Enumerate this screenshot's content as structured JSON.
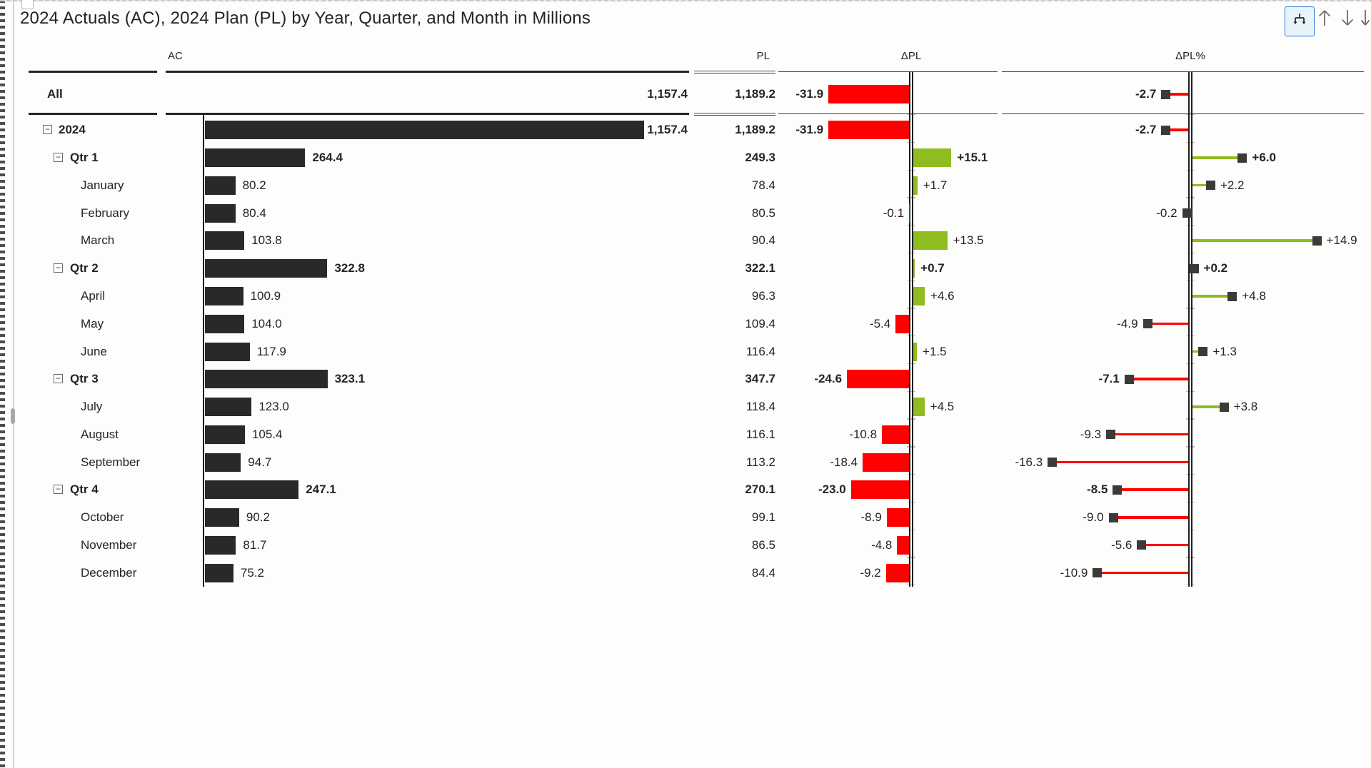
{
  "title": "2024 Actuals (AC), 2024 Plan (PL) by Year, Quarter, and Month in Millions",
  "toolbar": {
    "drill_mode_icon": "drill-down-mode",
    "drill_up_icon": "drill-up-arrow",
    "drill_down_icon": "drill-down-arrow",
    "expand_next_icon": "expand-all-down-double-arrow"
  },
  "columns": {
    "ac": "AC",
    "pl": "PL",
    "dpl": "ΔPL",
    "dplp": "ΔPL%"
  },
  "colors": {
    "bar": "#2a2928",
    "positive": "#8fbc1e",
    "negative": "#ff0000",
    "marker": "#3b3a39",
    "text": "#252423",
    "accent_button_bg": "#e8f3fc",
    "accent_button_border": "#2b7bd4"
  },
  "chart_data": {
    "type": "table",
    "unit": "Millions",
    "value_columns": [
      "AC",
      "PL",
      "ΔPL",
      "ΔPL%"
    ],
    "rows": [
      {
        "label": "All",
        "level": "all",
        "bold": true,
        "expandable": false,
        "ac": 1157.4,
        "ac_text": "1,157.4",
        "pl": 1189.2,
        "pl_text": "1,189.2",
        "dpl": -31.9,
        "dpl_text": "-31.9",
        "dplp": -2.7,
        "dplp_text": "-2.7"
      },
      {
        "label": "2024",
        "level": "year",
        "bold": true,
        "expandable": true,
        "ac": 1157.4,
        "ac_text": "1,157.4",
        "pl": 1189.2,
        "pl_text": "1,189.2",
        "dpl": -31.9,
        "dpl_text": "-31.9",
        "dplp": -2.7,
        "dplp_text": "-2.7"
      },
      {
        "label": "Qtr 1",
        "level": "quarter",
        "bold": true,
        "expandable": true,
        "ac": 264.4,
        "ac_text": "264.4",
        "pl": 249.3,
        "pl_text": "249.3",
        "dpl": 15.1,
        "dpl_text": "+15.1",
        "dplp": 6.0,
        "dplp_text": "+6.0"
      },
      {
        "label": "January",
        "level": "month",
        "bold": false,
        "expandable": false,
        "ac": 80.2,
        "ac_text": "80.2",
        "pl": 78.4,
        "pl_text": "78.4",
        "dpl": 1.7,
        "dpl_text": "+1.7",
        "dplp": 2.2,
        "dplp_text": "+2.2"
      },
      {
        "label": "February",
        "level": "month",
        "bold": false,
        "expandable": false,
        "ac": 80.4,
        "ac_text": "80.4",
        "pl": 80.5,
        "pl_text": "80.5",
        "dpl": -0.1,
        "dpl_text": "-0.1",
        "dplp": -0.2,
        "dplp_text": "-0.2"
      },
      {
        "label": "March",
        "level": "month",
        "bold": false,
        "expandable": false,
        "ac": 103.8,
        "ac_text": "103.8",
        "pl": 90.4,
        "pl_text": "90.4",
        "dpl": 13.5,
        "dpl_text": "+13.5",
        "dplp": 14.9,
        "dplp_text": "+14.9"
      },
      {
        "label": "Qtr 2",
        "level": "quarter",
        "bold": true,
        "expandable": true,
        "ac": 322.8,
        "ac_text": "322.8",
        "pl": 322.1,
        "pl_text": "322.1",
        "dpl": 0.7,
        "dpl_text": "+0.7",
        "dplp": 0.2,
        "dplp_text": "+0.2"
      },
      {
        "label": "April",
        "level": "month",
        "bold": false,
        "expandable": false,
        "ac": 100.9,
        "ac_text": "100.9",
        "pl": 96.3,
        "pl_text": "96.3",
        "dpl": 4.6,
        "dpl_text": "+4.6",
        "dplp": 4.8,
        "dplp_text": "+4.8"
      },
      {
        "label": "May",
        "level": "month",
        "bold": false,
        "expandable": false,
        "ac": 104.0,
        "ac_text": "104.0",
        "pl": 109.4,
        "pl_text": "109.4",
        "dpl": -5.4,
        "dpl_text": "-5.4",
        "dplp": -4.9,
        "dplp_text": "-4.9"
      },
      {
        "label": "June",
        "level": "month",
        "bold": false,
        "expandable": false,
        "ac": 117.9,
        "ac_text": "117.9",
        "pl": 116.4,
        "pl_text": "116.4",
        "dpl": 1.5,
        "dpl_text": "+1.5",
        "dplp": 1.3,
        "dplp_text": "+1.3"
      },
      {
        "label": "Qtr 3",
        "level": "quarter",
        "bold": true,
        "expandable": true,
        "ac": 323.1,
        "ac_text": "323.1",
        "pl": 347.7,
        "pl_text": "347.7",
        "dpl": -24.6,
        "dpl_text": "-24.6",
        "dplp": -7.1,
        "dplp_text": "-7.1"
      },
      {
        "label": "July",
        "level": "month",
        "bold": false,
        "expandable": false,
        "ac": 123.0,
        "ac_text": "123.0",
        "pl": 118.4,
        "pl_text": "118.4",
        "dpl": 4.5,
        "dpl_text": "+4.5",
        "dplp": 3.8,
        "dplp_text": "+3.8"
      },
      {
        "label": "August",
        "level": "month",
        "bold": false,
        "expandable": false,
        "ac": 105.4,
        "ac_text": "105.4",
        "pl": 116.1,
        "pl_text": "116.1",
        "dpl": -10.8,
        "dpl_text": "-10.8",
        "dplp": -9.3,
        "dplp_text": "-9.3"
      },
      {
        "label": "September",
        "level": "month",
        "bold": false,
        "expandable": false,
        "ac": 94.7,
        "ac_text": "94.7",
        "pl": 113.2,
        "pl_text": "113.2",
        "dpl": -18.4,
        "dpl_text": "-18.4",
        "dplp": -16.3,
        "dplp_text": "-16.3"
      },
      {
        "label": "Qtr 4",
        "level": "quarter",
        "bold": true,
        "expandable": true,
        "ac": 247.1,
        "ac_text": "247.1",
        "pl": 270.1,
        "pl_text": "270.1",
        "dpl": -23.0,
        "dpl_text": "-23.0",
        "dplp": -8.5,
        "dplp_text": "-8.5"
      },
      {
        "label": "October",
        "level": "month",
        "bold": false,
        "expandable": false,
        "ac": 90.2,
        "ac_text": "90.2",
        "pl": 99.1,
        "pl_text": "99.1",
        "dpl": -8.9,
        "dpl_text": "-8.9",
        "dplp": -9.0,
        "dplp_text": "-9.0"
      },
      {
        "label": "November",
        "level": "month",
        "bold": false,
        "expandable": false,
        "ac": 81.7,
        "ac_text": "81.7",
        "pl": 86.5,
        "pl_text": "86.5",
        "dpl": -4.8,
        "dpl_text": "-4.8",
        "dplp": -5.6,
        "dplp_text": "-5.6"
      },
      {
        "label": "December",
        "level": "month",
        "bold": false,
        "expandable": false,
        "ac": 75.2,
        "ac_text": "75.2",
        "pl": 84.4,
        "pl_text": "84.4",
        "dpl": -9.2,
        "dpl_text": "-9.2",
        "dplp": -10.9,
        "dplp_text": "-10.9"
      }
    ]
  },
  "expander_glyph": "−"
}
